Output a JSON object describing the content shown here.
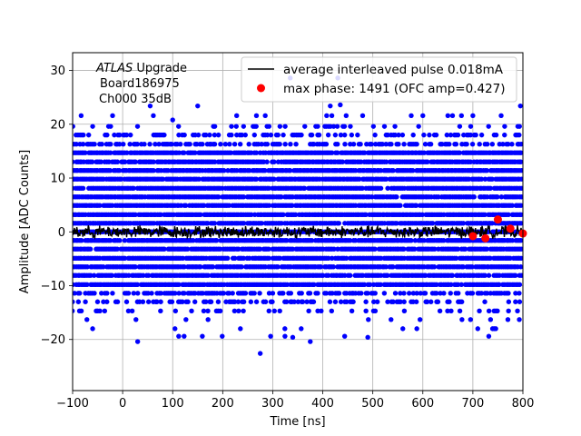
{
  "annotation": {
    "line1_italic": "ATLAS",
    "line1_rest": " Upgrade",
    "line2": "Board186975",
    "line3": "Ch000 35dB"
  },
  "legend": {
    "line_label": "average interleaved pulse 0.018mA",
    "marker_label": "max phase: 1491 (OFC amp=0.427)"
  },
  "chart_data": {
    "type": "scatter",
    "xlabel": "Time [ns]",
    "ylabel": "Amplitude [ADC Counts]",
    "xlim": [
      -100,
      800
    ],
    "ylim": [
      -29.5,
      33.3
    ],
    "xticks": [
      -100,
      0,
      100,
      200,
      300,
      400,
      500,
      600,
      700,
      800
    ],
    "yticks": [
      -20,
      -10,
      0,
      10,
      20,
      30
    ],
    "grid": true,
    "legend_position": "top-right",
    "colors": {
      "samples": "#0000ff",
      "average": "#000000",
      "max_phase": "#ff0000"
    },
    "series": [
      {
        "kind": "scatter",
        "description": "raw samples, quantized ADC levels",
        "x_range": [
          -100,
          800
        ],
        "levels": [
          -19.4,
          -18.0,
          -16.3,
          -14.7,
          -13.0,
          -11.4,
          -9.8,
          -8.1,
          -6.5,
          -4.9,
          -3.2,
          -1.6,
          0.0,
          1.6,
          3.2,
          4.9,
          6.5,
          8.1,
          9.8,
          11.4,
          13.0,
          14.7,
          16.3,
          18.0,
          19.6,
          21.6
        ],
        "dense_range": [
          -9.8,
          14.7
        ],
        "outliers": [
          [
            -83,
            21.6
          ],
          [
            -60,
            -18.0
          ],
          [
            30,
            -20.4
          ],
          [
            55,
            23.4
          ],
          [
            100,
            20.8
          ],
          [
            150,
            23.4
          ],
          [
            275,
            -22.6
          ],
          [
            285,
            21.6
          ],
          [
            335,
            28.6
          ],
          [
            340,
            -19.6
          ],
          [
            375,
            -20.4
          ],
          [
            415,
            23.4
          ],
          [
            430,
            28.6
          ],
          [
            435,
            23.6
          ],
          [
            490,
            -19.6
          ],
          [
            560,
            -18.0
          ],
          [
            600,
            21.6
          ],
          [
            650,
            21.6
          ],
          [
            700,
            21.6
          ],
          [
            770,
            -16.3
          ],
          [
            795,
            23.4
          ]
        ]
      },
      {
        "kind": "line",
        "x_range": [
          -100,
          800
        ],
        "baseline": 0.0,
        "noise_amplitude": 1.3
      },
      {
        "kind": "marker",
        "x": [
          700,
          725,
          750,
          775,
          800
        ],
        "y": [
          -0.8,
          -1.2,
          2.3,
          0.6,
          -0.3
        ]
      }
    ]
  }
}
